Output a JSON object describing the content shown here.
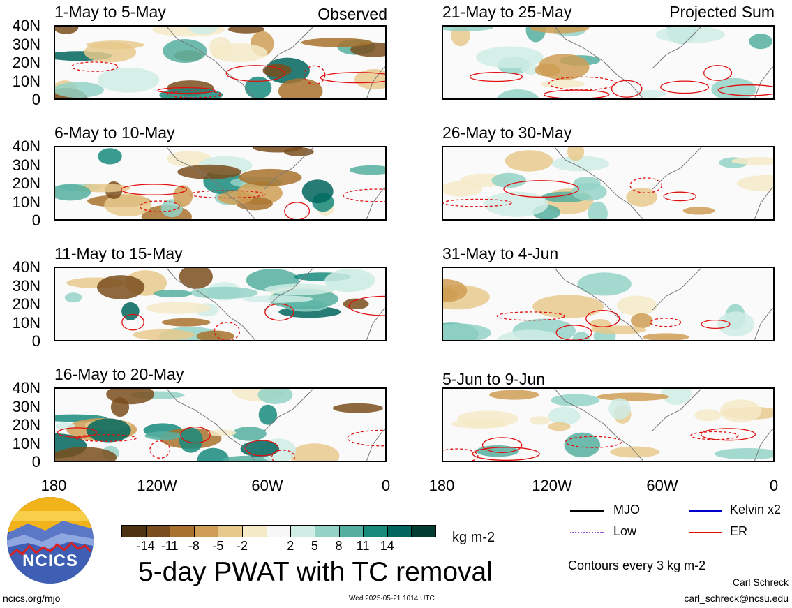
{
  "panels": [
    {
      "title": "1-May to 5-May",
      "label": "Observed"
    },
    {
      "title": "6-May to 10-May",
      "label": ""
    },
    {
      "title": "11-May to 15-May",
      "label": ""
    },
    {
      "title": "16-May to 20-May",
      "label": ""
    },
    {
      "title": "21-May to 25-May",
      "label": "Projected Sum"
    },
    {
      "title": "26-May to 30-May",
      "label": ""
    },
    {
      "title": "31-May to 4-Jun",
      "label": ""
    },
    {
      "title": "5-Jun to 9-Jun",
      "label": ""
    }
  ],
  "y_ticks": [
    "40N",
    "30N",
    "20N",
    "10N",
    "0"
  ],
  "x_ticks": [
    "180",
    "120W",
    "60W",
    "0"
  ],
  "colorbar": {
    "labels": [
      "-14",
      "-11",
      "-8",
      "-5",
      "-2",
      "2",
      "5",
      "8",
      "11",
      "14"
    ],
    "colors": [
      "#4d3211",
      "#7a4e1d",
      "#a8722e",
      "#cf9d55",
      "#e8c98c",
      "#f5eac8",
      "#f7f7f7",
      "#cfece5",
      "#93d2c5",
      "#55afa0",
      "#178a7c",
      "#01665e",
      "#003c30"
    ],
    "unit": "kg m-2"
  },
  "legend": [
    {
      "label": "MJO",
      "color": "#000000",
      "style": "solid"
    },
    {
      "label": "Kelvin x2",
      "color": "#0000cc",
      "style": "solid"
    },
    {
      "label": "Low",
      "color": "#a050e0",
      "style": "dotted"
    },
    {
      "label": "ER",
      "color": "#e01010",
      "style": "solid"
    }
  ],
  "contour_note": "Contours every 3 kg m-2",
  "main_title": "5-day PWAT with TC removal",
  "logo_text": "NCICS",
  "footer": {
    "left": "ncics.org/mjo",
    "center": "Wed 2025-05-21 1014 UTC",
    "author": "Carl Schreck",
    "email": "carl_schreck@ncsu.edu"
  },
  "chart_data": {
    "type": "heatmap",
    "variable": "5-day PWAT with TC removal",
    "unit": "kg m-2",
    "x_range": [
      "180",
      "0"
    ],
    "y_range": [
      "0",
      "40N"
    ],
    "panels": [
      "1-May to 5-May",
      "6-May to 10-May",
      "11-May to 15-May",
      "16-May to 20-May",
      "21-May to 25-May",
      "26-May to 30-May",
      "31-May to 4-Jun",
      "5-Jun to 9-Jun"
    ]
  }
}
